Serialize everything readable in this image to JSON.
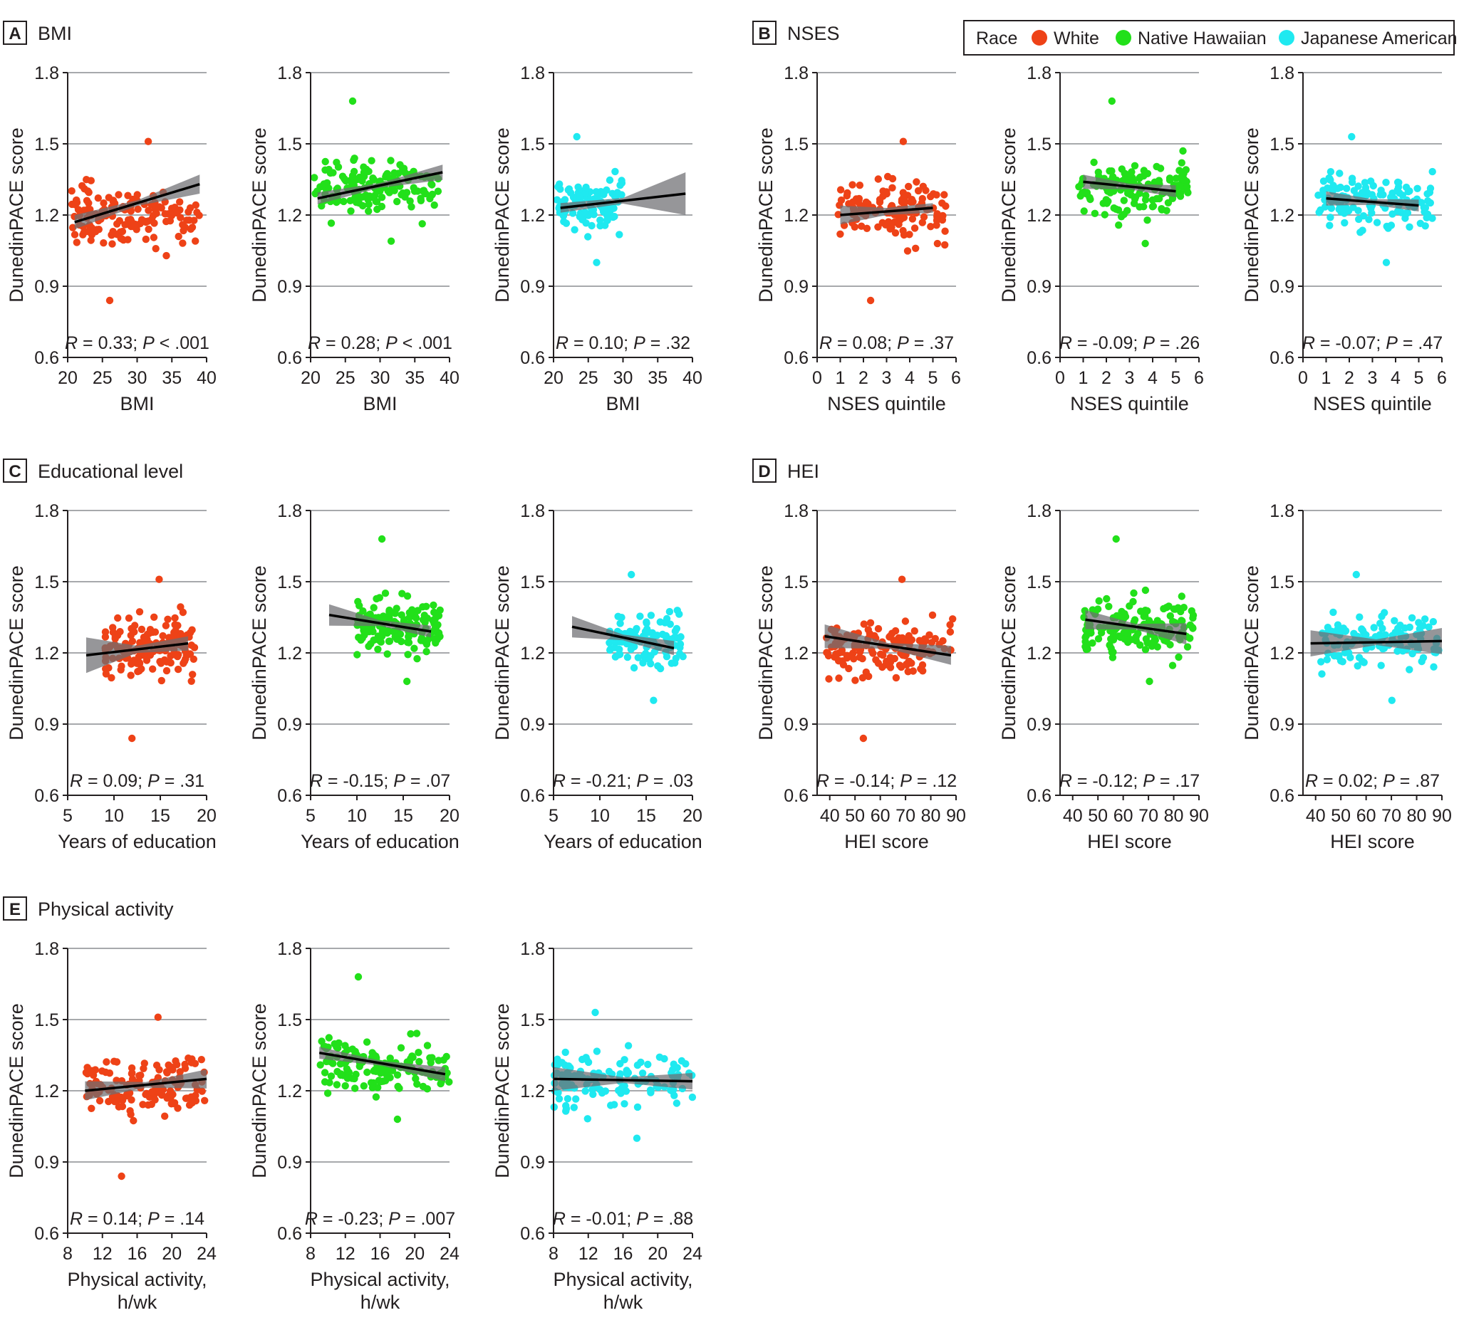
{
  "figure": {
    "legend": {
      "title": "Race",
      "items": [
        {
          "label": "White",
          "color": "#ee4217"
        },
        {
          "label": "Native Hawaiian",
          "color": "#22e01a"
        },
        {
          "label": "Japanese American",
          "color": "#1fe9f0"
        }
      ]
    },
    "y_label": "DunedinPACE score"
  },
  "chart_data": [
    {
      "letter": "A",
      "title": "BMI",
      "type": "scatter",
      "xlabel": [
        "BMI"
      ],
      "xlim": [
        20,
        40
      ],
      "xticks": [
        20,
        25,
        30,
        35,
        40
      ],
      "ylabel": "DunedinPACE score",
      "ylim": [
        0.6,
        1.8
      ],
      "yticks": [
        "0.6",
        "0.9",
        "1.2",
        "1.5",
        "1.8"
      ],
      "series": [
        {
          "name": "White",
          "stat": [
            "R",
            " = 0.33; ",
            "P",
            " < .001"
          ],
          "fit": [
            [
              21,
              1.17
            ],
            [
              39,
              1.33
            ]
          ],
          "band": [
            0.03,
            0.012,
            0.04
          ],
          "scatter": {
            "x": [
              20.5,
              39
            ],
            "y_mid": 1.2,
            "y_sd": 0.11,
            "n": 150,
            "outlier_y": [
              0.84,
              1.51
            ],
            "seed": 11
          }
        },
        {
          "name": "Native Hawaiian",
          "stat": [
            "R",
            " = 0.28; ",
            "P",
            " < .001"
          ],
          "fit": [
            [
              21,
              1.27
            ],
            [
              39,
              1.38
            ]
          ],
          "band": [
            0.025,
            0.01,
            0.032
          ],
          "scatter": {
            "x": [
              20.5,
              39
            ],
            "y_mid": 1.32,
            "y_sd": 0.1,
            "n": 150,
            "outlier_y": [
              1.68,
              1.09
            ],
            "seed": 21
          }
        },
        {
          "name": "Japanese American",
          "stat": [
            "R",
            " = 0.10; ",
            "P",
            " = .32"
          ],
          "fit": [
            [
              21,
              1.23
            ],
            [
              39,
              1.29
            ]
          ],
          "band": [
            0.02,
            0.012,
            0.09
          ],
          "scatter": {
            "x": [
              20.5,
              30
            ],
            "y_mid": 1.25,
            "y_sd": 0.1,
            "n": 110,
            "outlier_y": [
              1.53,
              1.0
            ],
            "seed": 31
          }
        }
      ]
    },
    {
      "letter": "B",
      "title": "NSES",
      "type": "scatter",
      "xlabel": [
        "NSES quintile"
      ],
      "xlim": [
        0,
        6
      ],
      "xticks": [
        0,
        1,
        2,
        3,
        4,
        5,
        6
      ],
      "ylabel": "DunedinPACE score",
      "ylim": [
        0.6,
        1.8
      ],
      "yticks": [
        "0.6",
        "0.9",
        "1.2",
        "1.5",
        "1.8"
      ],
      "series": [
        {
          "name": "White",
          "stat": [
            "R",
            " = 0.08; ",
            "P",
            " = .37"
          ],
          "fit": [
            [
              1,
              1.2
            ],
            [
              5,
              1.23
            ]
          ],
          "band": [
            0.04,
            0.015,
            0.02
          ],
          "scatter": {
            "x": [
              0.9,
              5.6
            ],
            "y_mid": 1.22,
            "y_sd": 0.11,
            "n": 130,
            "outlier_y": [
              0.84,
              1.51
            ],
            "seed": 41
          }
        },
        {
          "name": "Native Hawaiian",
          "stat": [
            "R",
            " = -0.09; ",
            "P",
            " = .26"
          ],
          "fit": [
            [
              1,
              1.34
            ],
            [
              5,
              1.3
            ]
          ],
          "band": [
            0.03,
            0.012,
            0.025
          ],
          "scatter": {
            "x": [
              0.8,
              5.6
            ],
            "y_mid": 1.32,
            "y_sd": 0.1,
            "n": 140,
            "outlier_y": [
              1.68,
              1.08
            ],
            "seed": 51
          }
        },
        {
          "name": "Japanese American",
          "stat": [
            "R",
            " = -0.07; ",
            "P",
            " = .47"
          ],
          "fit": [
            [
              1,
              1.27
            ],
            [
              5,
              1.24
            ]
          ],
          "band": [
            0.03,
            0.012,
            0.025
          ],
          "scatter": {
            "x": [
              0.6,
              5.6
            ],
            "y_mid": 1.25,
            "y_sd": 0.1,
            "n": 130,
            "outlier_y": [
              1.53,
              1.0
            ],
            "seed": 61
          }
        }
      ]
    },
    {
      "letter": "C",
      "title": "Educational level",
      "type": "scatter",
      "xlabel": [
        "Years of education"
      ],
      "xlim": [
        5,
        20
      ],
      "xticks": [
        5,
        10,
        15,
        20
      ],
      "ylabel": "DunedinPACE score",
      "ylim": [
        0.6,
        1.8
      ],
      "yticks": [
        "0.6",
        "0.9",
        "1.2",
        "1.5",
        "1.8"
      ],
      "series": [
        {
          "name": "White",
          "stat": [
            "R",
            " = 0.09; ",
            "P",
            " = .31"
          ],
          "fit": [
            [
              7,
              1.19
            ],
            [
              18,
              1.24
            ]
          ],
          "band": [
            0.075,
            0.015,
            0.03
          ],
          "scatter": {
            "x": [
              9,
              18.8
            ],
            "y_mid": 1.22,
            "y_sd": 0.11,
            "n": 150,
            "outlier_y": [
              0.84,
              1.51
            ],
            "seed": 71
          }
        },
        {
          "name": "Native Hawaiian",
          "stat": [
            "R",
            " = -0.15; ",
            "P",
            " = .07"
          ],
          "fit": [
            [
              7,
              1.36
            ],
            [
              18,
              1.29
            ]
          ],
          "band": [
            0.045,
            0.012,
            0.025
          ],
          "scatter": {
            "x": [
              10,
              19
            ],
            "y_mid": 1.31,
            "y_sd": 0.1,
            "n": 140,
            "outlier_y": [
              1.68,
              1.08
            ],
            "seed": 81
          }
        },
        {
          "name": "Japanese American",
          "stat": [
            "R",
            " = -0.21; ",
            "P",
            " = .03"
          ],
          "fit": [
            [
              7,
              1.31
            ],
            [
              18,
              1.22
            ]
          ],
          "band": [
            0.045,
            0.012,
            0.03
          ],
          "scatter": {
            "x": [
              11,
              19
            ],
            "y_mid": 1.25,
            "y_sd": 0.1,
            "n": 110,
            "outlier_y": [
              1.53,
              1.0
            ],
            "seed": 91
          }
        }
      ]
    },
    {
      "letter": "D",
      "title": "HEI",
      "type": "scatter",
      "xlabel": [
        "HEI score"
      ],
      "xlim": [
        35,
        90
      ],
      "xticks": [
        40,
        50,
        60,
        70,
        80,
        90
      ],
      "ylabel": "DunedinPACE score",
      "ylim": [
        0.6,
        1.8
      ],
      "yticks": [
        "0.6",
        "0.9",
        "1.2",
        "1.5",
        "1.8"
      ],
      "series": [
        {
          "name": "White",
          "stat": [
            "R",
            " = -0.14; ",
            "P",
            " = .12"
          ],
          "fit": [
            [
              38,
              1.27
            ],
            [
              88,
              1.19
            ]
          ],
          "band": [
            0.05,
            0.012,
            0.04
          ],
          "scatter": {
            "x": [
              38,
              89
            ],
            "y_mid": 1.22,
            "y_sd": 0.1,
            "n": 150,
            "outlier_y": [
              0.84,
              1.51
            ],
            "seed": 101
          }
        },
        {
          "name": "Native Hawaiian",
          "stat": [
            "R",
            " = -0.12; ",
            "P",
            " = .17"
          ],
          "fit": [
            [
              45,
              1.34
            ],
            [
              85,
              1.28
            ]
          ],
          "band": [
            0.04,
            0.012,
            0.045
          ],
          "scatter": {
            "x": [
              44,
              88
            ],
            "y_mid": 1.31,
            "y_sd": 0.1,
            "n": 150,
            "outlier_y": [
              1.68,
              1.08
            ],
            "seed": 111
          }
        },
        {
          "name": "Japanese American",
          "stat": [
            "R",
            " = 0.02; ",
            "P",
            " = .87"
          ],
          "fit": [
            [
              38,
              1.24
            ],
            [
              90,
              1.25
            ]
          ],
          "band": [
            0.055,
            0.012,
            0.055
          ],
          "scatter": {
            "x": [
              42,
              89
            ],
            "y_mid": 1.25,
            "y_sd": 0.1,
            "n": 120,
            "outlier_y": [
              1.53,
              1.0
            ],
            "seed": 121
          }
        }
      ]
    },
    {
      "letter": "E",
      "title": "Physical activity",
      "type": "scatter",
      "xlabel": [
        "Physical activity,",
        "h/wk"
      ],
      "xlim": [
        8,
        24
      ],
      "xticks": [
        8,
        12,
        16,
        20,
        24
      ],
      "ylabel": "DunedinPACE score",
      "ylim": [
        0.6,
        1.8
      ],
      "yticks": [
        "0.6",
        "0.9",
        "1.2",
        "1.5",
        "1.8"
      ],
      "series": [
        {
          "name": "White",
          "stat": [
            "R",
            " = 0.14; ",
            "P",
            " = .14"
          ],
          "fit": [
            [
              10,
              1.2
            ],
            [
              24,
              1.25
            ]
          ],
          "band": [
            0.04,
            0.012,
            0.04
          ],
          "scatter": {
            "x": [
              10,
              24
            ],
            "y_mid": 1.22,
            "y_sd": 0.11,
            "n": 140,
            "outlier_y": [
              0.84,
              1.51
            ],
            "seed": 131
          }
        },
        {
          "name": "Native Hawaiian",
          "stat": [
            "R",
            " = -0.23; ",
            "P",
            " = .007"
          ],
          "fit": [
            [
              9,
              1.36
            ],
            [
              23.5,
              1.27
            ]
          ],
          "band": [
            0.025,
            0.01,
            0.03
          ],
          "scatter": {
            "x": [
              9,
              24
            ],
            "y_mid": 1.3,
            "y_sd": 0.1,
            "n": 150,
            "outlier_y": [
              1.68,
              1.08
            ],
            "seed": 141
          }
        },
        {
          "name": "Japanese American",
          "stat": [
            "R",
            " = -0.01; ",
            "P",
            " = .88"
          ],
          "fit": [
            [
              8,
              1.25
            ],
            [
              24,
              1.24
            ]
          ],
          "band": [
            0.05,
            0.012,
            0.035
          ],
          "scatter": {
            "x": [
              8,
              24
            ],
            "y_mid": 1.24,
            "y_sd": 0.1,
            "n": 120,
            "outlier_y": [
              1.53,
              1.0
            ],
            "seed": 151
          }
        }
      ]
    }
  ]
}
